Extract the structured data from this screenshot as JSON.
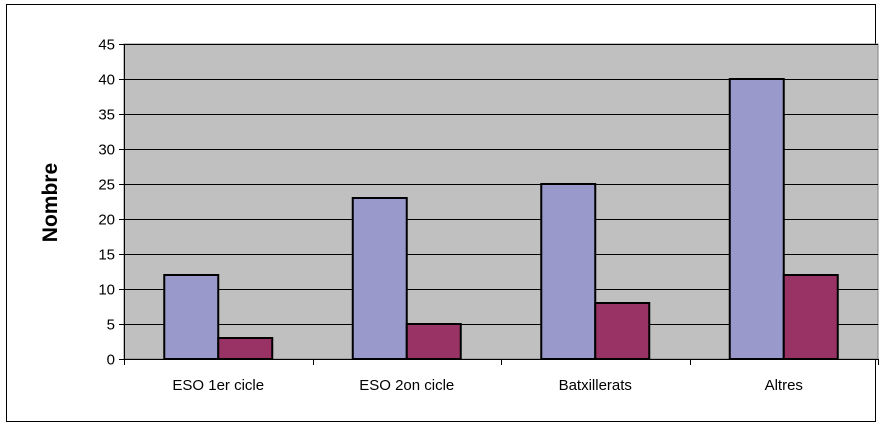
{
  "chart_data": {
    "type": "bar",
    "title": "",
    "xlabel": "",
    "ylabel": "Nombre",
    "categories": [
      "ESO 1er cicle",
      "ESO 2on cicle",
      "Batxillerats",
      "Altres"
    ],
    "series": [
      {
        "values": [
          12,
          23,
          25,
          40
        ],
        "color": "#9999cc"
      },
      {
        "values": [
          3,
          5,
          8,
          12
        ],
        "color": "#993366"
      }
    ],
    "ylim": [
      0,
      45
    ],
    "yticks": [
      0,
      5,
      10,
      15,
      20,
      25,
      30,
      35,
      40,
      45
    ],
    "grid": true,
    "legend": "none",
    "plot_background": "#c0c0c0"
  }
}
